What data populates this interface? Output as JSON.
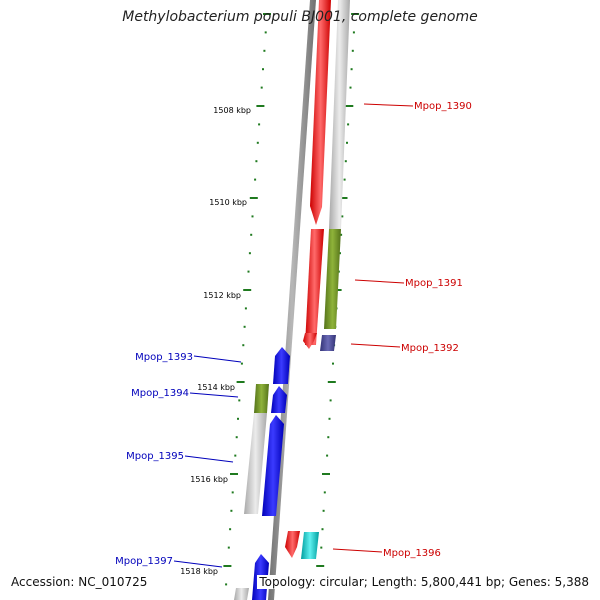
{
  "title": "Methylobacterium populi BJ001, complete genome",
  "accession_text": "Accession: NC_010725",
  "summary_text": "Topology: circular; Length: 5,800,441 bp; Genes: 5,388",
  "colors": {
    "backbone": "#808080",
    "ticks": "#1f7a1f",
    "forward_label": "#cc0000",
    "reverse_label": "#0000bb",
    "red_gene": "#ff0000",
    "blue_gene": "#0000ee",
    "olive_gene": "#6b8e23",
    "gray_gene": "#c8c8c8",
    "slate_gene": "#4a4a9a",
    "cyan_gene": "#00cccc"
  },
  "kbp_ticks": [
    "1508 kbp",
    "1510 kbp",
    "1512 kbp",
    "1514 kbp",
    "1516 kbp",
    "1518 kbp"
  ],
  "gene_labels": {
    "forward": [
      "Mpop_1390",
      "Mpop_1391",
      "Mpop_1392",
      "Mpop_1396"
    ],
    "reverse": [
      "Mpop_1393",
      "Mpop_1394",
      "Mpop_1395",
      "Mpop_1397"
    ]
  }
}
